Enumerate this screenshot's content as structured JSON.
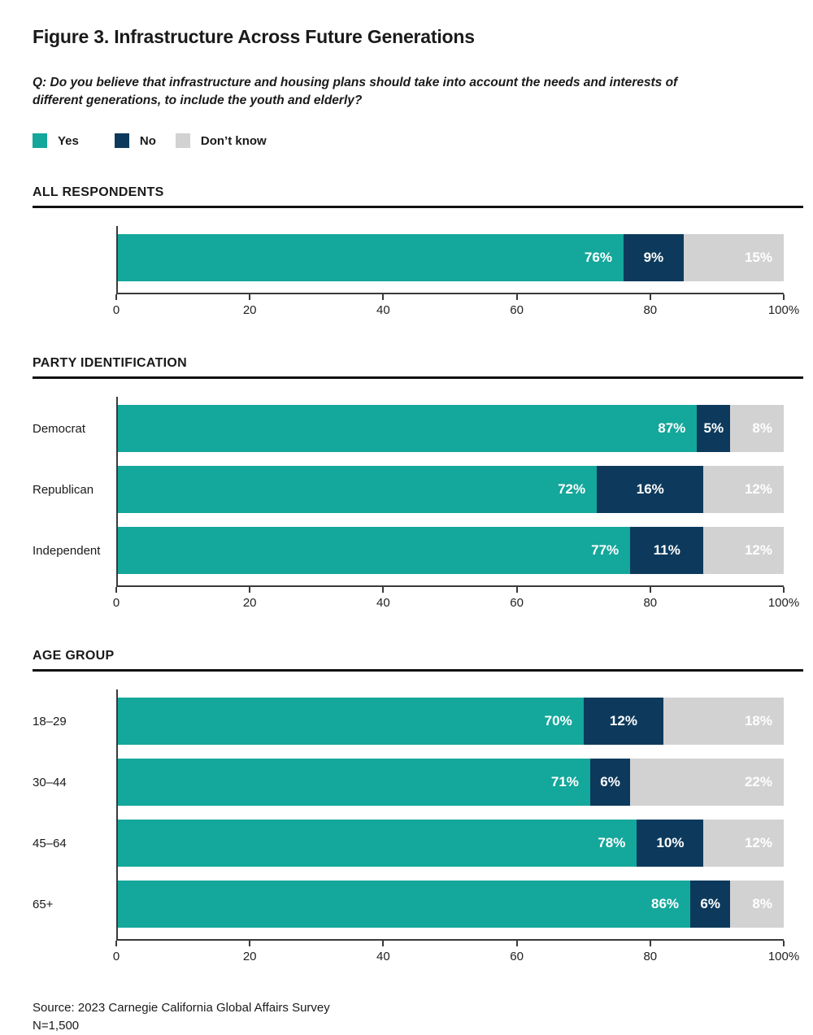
{
  "header": {
    "title": "Figure 3. Infrastructure Across Future Generations",
    "question": "Q: Do you believe that infrastructure and housing plans should take into account the needs and interests of different generations, to include the youth and elderly?"
  },
  "legend": [
    {
      "label": "Yes",
      "color": "#14A79B"
    },
    {
      "label": "No",
      "color": "#0D3A5C"
    },
    {
      "label": "Don’t know",
      "color": "#D2D2D3"
    }
  ],
  "colors": {
    "yes": "#14A79B",
    "no": "#0D3A5C",
    "dont_know": "#D2D2D3",
    "rule": "#111111",
    "axis": "#3a3a3a"
  },
  "axis": {
    "tick_labels": [
      "0",
      "20",
      "40",
      "60",
      "80",
      "100%"
    ],
    "tick_positions": [
      0,
      20,
      40,
      60,
      80,
      100
    ]
  },
  "chart_data": [
    {
      "type": "bar",
      "orientation": "horizontal",
      "stacked": true,
      "section": "ALL RESPONDENTS",
      "categories": [
        ""
      ],
      "series": [
        {
          "name": "Yes",
          "values": [
            76
          ]
        },
        {
          "name": "No",
          "values": [
            9
          ]
        },
        {
          "name": "Don’t know",
          "values": [
            15
          ]
        }
      ],
      "xlim": [
        0,
        100
      ],
      "tick_labels": [
        "0",
        "20",
        "40",
        "60",
        "80",
        "100%"
      ],
      "legend_position": "top",
      "grid": false
    },
    {
      "type": "bar",
      "orientation": "horizontal",
      "stacked": true,
      "section": "PARTY IDENTIFICATION",
      "categories": [
        "Democrat",
        "Republican",
        "Independent"
      ],
      "series": [
        {
          "name": "Yes",
          "values": [
            87,
            72,
            77
          ]
        },
        {
          "name": "No",
          "values": [
            5,
            16,
            11
          ]
        },
        {
          "name": "Don’t know",
          "values": [
            8,
            12,
            12
          ]
        }
      ],
      "xlim": [
        0,
        100
      ],
      "tick_labels": [
        "0",
        "20",
        "40",
        "60",
        "80",
        "100%"
      ],
      "legend_position": "top",
      "grid": false
    },
    {
      "type": "bar",
      "orientation": "horizontal",
      "stacked": true,
      "section": "AGE GROUP",
      "categories": [
        "18–29",
        "30–44",
        "45–64",
        "65+"
      ],
      "series": [
        {
          "name": "Yes",
          "values": [
            70,
            71,
            78,
            86
          ]
        },
        {
          "name": "No",
          "values": [
            12,
            6,
            10,
            6
          ]
        },
        {
          "name": "Don’t know",
          "values": [
            18,
            22,
            12,
            8
          ]
        }
      ],
      "xlim": [
        0,
        100
      ],
      "tick_labels": [
        "0",
        "20",
        "40",
        "60",
        "80",
        "100%"
      ],
      "legend_position": "top",
      "grid": false
    }
  ],
  "footer": {
    "source": "Source: 2023 Carnegie California Global Affairs Survey",
    "n": "N=1,500"
  }
}
